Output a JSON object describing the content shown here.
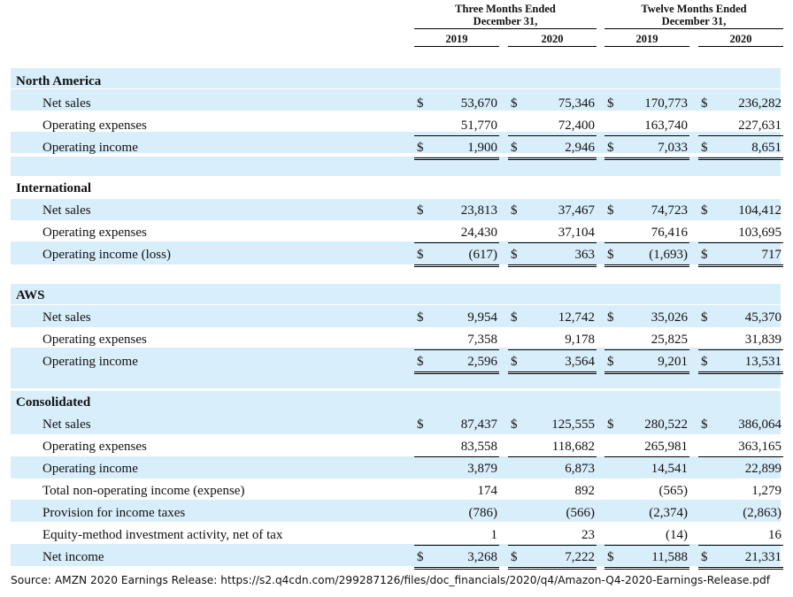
{
  "header": {
    "groups": [
      {
        "label_line1": "Three Months Ended",
        "label_line2": "December 31,",
        "years": [
          "2019",
          "2020"
        ]
      },
      {
        "label_line1": "Twelve Months Ended",
        "label_line2": "December 31,",
        "years": [
          "2019",
          "2020"
        ]
      }
    ]
  },
  "sections": [
    {
      "title": "North America",
      "rows": [
        {
          "label": "Net sales",
          "values": [
            "53,670",
            "75,346",
            "170,773",
            "236,282"
          ],
          "dollar": true,
          "rule": "none"
        },
        {
          "label": "Operating expenses",
          "values": [
            "51,770",
            "72,400",
            "163,740",
            "227,631"
          ],
          "dollar": false,
          "rule": "single"
        },
        {
          "label": "Operating income",
          "values": [
            "1,900",
            "2,946",
            "7,033",
            "8,651"
          ],
          "dollar": true,
          "rule": "double"
        }
      ]
    },
    {
      "title": "International",
      "rows": [
        {
          "label": "Net sales",
          "values": [
            "23,813",
            "37,467",
            "74,723",
            "104,412"
          ],
          "dollar": true,
          "rule": "none"
        },
        {
          "label": "Operating expenses",
          "values": [
            "24,430",
            "37,104",
            "76,416",
            "103,695"
          ],
          "dollar": false,
          "rule": "single"
        },
        {
          "label": "Operating income (loss)",
          "values": [
            "(617)",
            "363",
            "(1,693)",
            "717"
          ],
          "dollar": true,
          "rule": "double"
        }
      ]
    },
    {
      "title": "AWS",
      "rows": [
        {
          "label": "Net sales",
          "values": [
            "9,954",
            "12,742",
            "35,026",
            "45,370"
          ],
          "dollar": true,
          "rule": "none"
        },
        {
          "label": "Operating expenses",
          "values": [
            "7,358",
            "9,178",
            "25,825",
            "31,839"
          ],
          "dollar": false,
          "rule": "single"
        },
        {
          "label": "Operating income",
          "values": [
            "2,596",
            "3,564",
            "9,201",
            "13,531"
          ],
          "dollar": true,
          "rule": "double"
        }
      ]
    },
    {
      "title": "Consolidated",
      "rows": [
        {
          "label": "Net sales",
          "values": [
            "87,437",
            "125,555",
            "280,522",
            "386,064"
          ],
          "dollar": true,
          "rule": "none"
        },
        {
          "label": "Operating expenses",
          "values": [
            "83,558",
            "118,682",
            "265,981",
            "363,165"
          ],
          "dollar": false,
          "rule": "single"
        },
        {
          "label": "Operating income",
          "values": [
            "3,879",
            "6,873",
            "14,541",
            "22,899"
          ],
          "dollar": false,
          "rule": "none"
        },
        {
          "label": "Total non-operating income (expense)",
          "values": [
            "174",
            "892",
            "(565)",
            "1,279"
          ],
          "dollar": false,
          "rule": "none"
        },
        {
          "label": "Provision for income taxes",
          "values": [
            "(786)",
            "(566)",
            "(2,374)",
            "(2,863)"
          ],
          "dollar": false,
          "rule": "none"
        },
        {
          "label": "Equity-method investment activity, net of tax",
          "values": [
            "1",
            "23",
            "(14)",
            "16"
          ],
          "dollar": false,
          "rule": "single"
        },
        {
          "label": "Net income",
          "values": [
            "3,268",
            "7,222",
            "11,588",
            "21,331"
          ],
          "dollar": true,
          "rule": "double"
        }
      ]
    }
  ],
  "currency_symbol": "$",
  "colors": {
    "stripe": "#d9eefb"
  },
  "source_note": "Source: AMZN 2020 Earnings Release: https://s2.q4cdn.com/299287126/files/doc_financials/2020/q4/Amazon-Q4-2020-Earnings-Release.pdf"
}
